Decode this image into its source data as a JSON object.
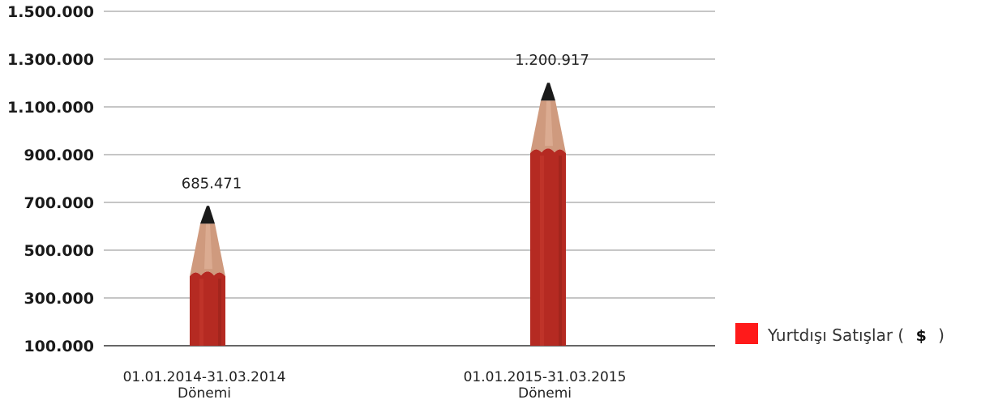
{
  "chart_data": {
    "type": "bar",
    "title": "",
    "xlabel": "",
    "ylabel": "",
    "categories": [
      [
        "01.01.2014-31.03.2014",
        "Dönemi"
      ],
      [
        "01.01.2015-31.03.2015",
        "Dönemi"
      ]
    ],
    "series": [
      {
        "name": "Yurtdışı Satışlar ( $ )",
        "legend_text": "Yurtdışı Satışlar (",
        "legend_symbol": "$",
        "legend_close": ")",
        "color": "#ff1a1a",
        "values": [
          685471,
          1200917
        ],
        "value_labels": [
          "685.471",
          "1.200.917"
        ]
      }
    ],
    "yticks": [
      100000,
      300000,
      500000,
      700000,
      900000,
      1100000,
      1300000,
      1500000
    ],
    "ytick_labels": [
      "100.000",
      "300.000",
      "500.000",
      "700.000",
      "900.000",
      "1.100.000",
      "1.300.000",
      "1.500.000"
    ],
    "ylim": [
      100000,
      1500000
    ],
    "grid": true,
    "legend_position": "right",
    "bar_style": "pencil",
    "bar_color": "#b52a22",
    "wood_color": "#cf9a7e",
    "lead_color": "#1a1a1a"
  }
}
